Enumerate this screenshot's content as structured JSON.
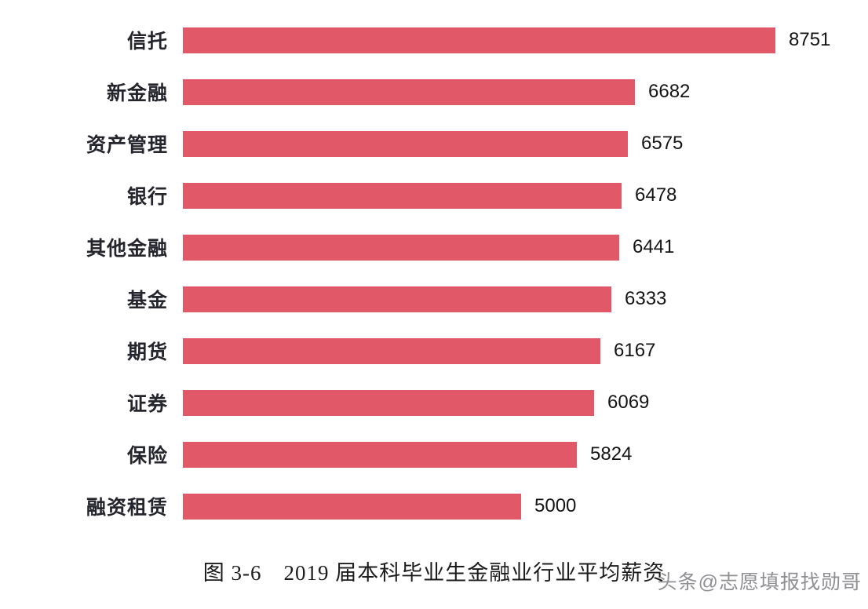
{
  "chart_data": {
    "type": "bar",
    "orientation": "horizontal",
    "title": "图 3-6　2019 届本科毕业生金融业行业平均薪资",
    "categories": [
      "信托",
      "新金融",
      "资产管理",
      "银行",
      "其他金融",
      "基金",
      "期货",
      "证券",
      "保险",
      "融资租赁"
    ],
    "values": [
      8751,
      6682,
      6575,
      6478,
      6441,
      6333,
      6167,
      6069,
      5824,
      5000
    ],
    "xlabel": "",
    "ylabel": "",
    "xlim": [
      0,
      8751
    ],
    "grid": false,
    "legend": false,
    "value_labels": true,
    "bar_color": "#e15869"
  },
  "caption": {
    "text": "图 3-6　2019 届本科毕业生金融业行业平均薪资"
  },
  "watermark": {
    "text": "头条@志愿填报找勋哥",
    "color": "#8f8f94"
  }
}
